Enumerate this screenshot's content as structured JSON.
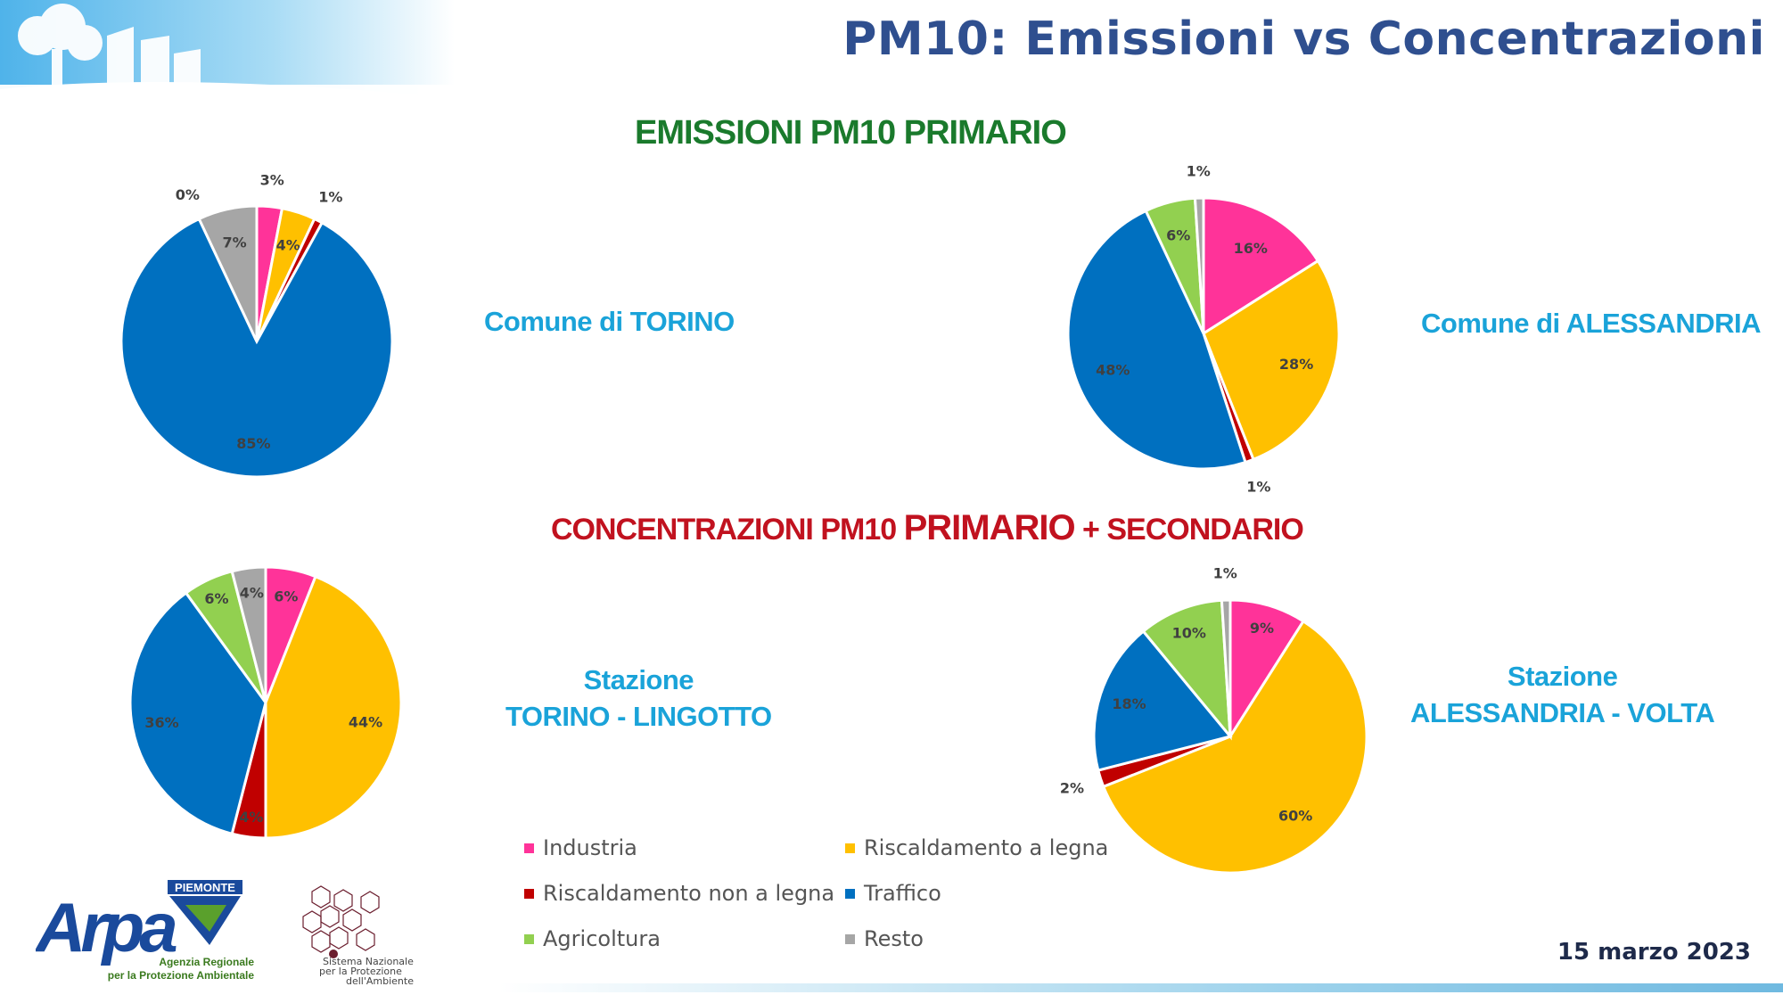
{
  "slide": {
    "title": "PM10: Emissioni vs Concentrazioni",
    "section_emissions": "EMISSIONI PM10 PRIMARIO",
    "section_concentrations_a": "CONCENTRAZIONI PM10 ",
    "section_concentrations_b": "PRIMARIO",
    "section_concentrations_c": " + SECONDARIO",
    "date": "15 marzo 2023"
  },
  "labels": {
    "torino": [
      "Comune di TORINO"
    ],
    "alessandria": [
      "Comune di ALESSANDRIA"
    ],
    "lingotto": [
      "Stazione",
      "TORINO - LINGOTTO"
    ],
    "volta": [
      "Stazione",
      "ALESSANDRIA - VOLTA"
    ]
  },
  "legend": [
    {
      "label": "Industria",
      "color": "#ff3399"
    },
    {
      "label": "Riscaldamento a legna",
      "color": "#ffc000"
    },
    {
      "label": "Riscaldamento non a legna",
      "color": "#c00000"
    },
    {
      "label": "Traffico",
      "color": "#0070c0"
    },
    {
      "label": "Agricoltura",
      "color": "#92d050"
    },
    {
      "label": "Resto",
      "color": "#a6a6a6"
    }
  ],
  "logos": {
    "arpa_region": "PIEMONTE",
    "arpa_name": "Arpa",
    "arpa_line1": "Agenzia Regionale",
    "arpa_line2": "per la Protezione Ambientale",
    "snpa_line1": "Sistema Nazionale",
    "snpa_line2": "per la Protezione",
    "snpa_line3": "dell'Ambiente"
  },
  "chart_data": [
    {
      "type": "pie",
      "title": "Comune di TORINO",
      "categories": [
        "Industria",
        "Riscaldamento a legna",
        "Riscaldamento non a legna",
        "Traffico",
        "Agricoltura",
        "Resto"
      ],
      "values": [
        3,
        4,
        1,
        85,
        0,
        7
      ],
      "labels": [
        "3%",
        "4%",
        "1%",
        "85%",
        "0%",
        "7%"
      ]
    },
    {
      "type": "pie",
      "title": "Comune di ALESSANDRIA",
      "categories": [
        "Industria",
        "Riscaldamento a legna",
        "Riscaldamento non a legna",
        "Traffico",
        "Agricoltura",
        "Resto"
      ],
      "values": [
        16,
        28,
        1,
        48,
        6,
        1
      ],
      "labels": [
        "16%",
        "28%",
        "1%",
        "48%",
        "6%",
        "1%"
      ]
    },
    {
      "type": "pie",
      "title": "Stazione TORINO - LINGOTTO",
      "categories": [
        "Industria",
        "Riscaldamento a legna",
        "Riscaldamento non a legna",
        "Traffico",
        "Agricoltura",
        "Resto"
      ],
      "values": [
        6,
        44,
        4,
        36,
        6,
        4
      ],
      "labels": [
        "6%",
        "44%",
        "4%",
        "36%",
        "6%",
        "4%"
      ]
    },
    {
      "type": "pie",
      "title": "Stazione ALESSANDRIA - VOLTA",
      "categories": [
        "Industria",
        "Riscaldamento a legna",
        "Riscaldamento non a legna",
        "Traffico",
        "Agricoltura",
        "Resto"
      ],
      "values": [
        9,
        60,
        2,
        18,
        10,
        1
      ],
      "labels": [
        "9%",
        "60%",
        "2%",
        "18%",
        "10%",
        "1%"
      ]
    }
  ]
}
